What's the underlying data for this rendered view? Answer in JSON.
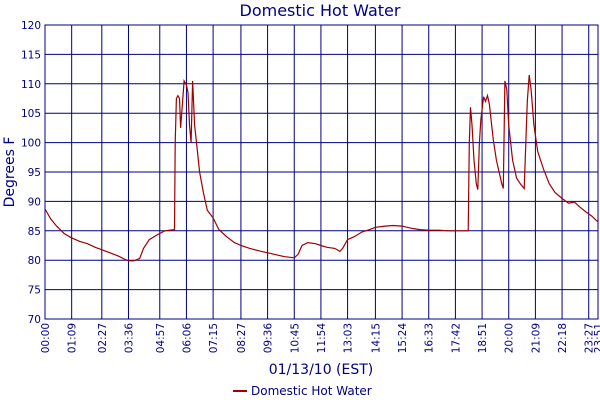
{
  "chart_data": {
    "type": "line",
    "title": "Domestic Hot Water",
    "xlabel": "01/13/10 (EST)",
    "ylabel": "Degrees F",
    "ylim": [
      70,
      120
    ],
    "yticks": [
      70,
      75,
      80,
      85,
      90,
      95,
      100,
      105,
      110,
      115,
      120
    ],
    "xlim_minutes": [
      0,
      1431
    ],
    "xticks": [
      {
        "label": "00:00",
        "minute": 0
      },
      {
        "label": "01:09",
        "minute": 69
      },
      {
        "label": "02:27",
        "minute": 147
      },
      {
        "label": "03:36",
        "minute": 216
      },
      {
        "label": "04:57",
        "minute": 297
      },
      {
        "label": "06:06",
        "minute": 366
      },
      {
        "label": "07:15",
        "minute": 435
      },
      {
        "label": "08:27",
        "minute": 507
      },
      {
        "label": "09:36",
        "minute": 576
      },
      {
        "label": "10:45",
        "minute": 645
      },
      {
        "label": "11:54",
        "minute": 714
      },
      {
        "label": "13:03",
        "minute": 783
      },
      {
        "label": "14:15",
        "minute": 855
      },
      {
        "label": "15:24",
        "minute": 924
      },
      {
        "label": "16:33",
        "minute": 993
      },
      {
        "label": "17:42",
        "minute": 1062
      },
      {
        "label": "18:51",
        "minute": 1131
      },
      {
        "label": "20:00",
        "minute": 1200
      },
      {
        "label": "21:09",
        "minute": 1269
      },
      {
        "label": "22:18",
        "minute": 1338
      },
      {
        "label": "23:27",
        "minute": 1407
      },
      {
        "label": "23:51",
        "minute": 1431
      }
    ],
    "grid": true,
    "legend_position": "bottom",
    "series": [
      {
        "name": "Domestic Hot Water",
        "color": "#a00000",
        "points": [
          [
            0,
            88.7
          ],
          [
            15,
            87
          ],
          [
            30,
            85.8
          ],
          [
            50,
            84.5
          ],
          [
            69,
            83.8
          ],
          [
            90,
            83.2
          ],
          [
            110,
            82.8
          ],
          [
            130,
            82.2
          ],
          [
            150,
            81.7
          ],
          [
            170,
            81.2
          ],
          [
            190,
            80.7
          ],
          [
            205,
            80.2
          ],
          [
            216,
            79.9
          ],
          [
            230,
            79.9
          ],
          [
            245,
            80.3
          ],
          [
            255,
            82
          ],
          [
            270,
            83.5
          ],
          [
            290,
            84.3
          ],
          [
            310,
            85
          ],
          [
            335,
            85.2
          ],
          [
            337,
            100
          ],
          [
            340,
            107.5
          ],
          [
            344,
            108
          ],
          [
            348,
            107.5
          ],
          [
            351,
            102.5
          ],
          [
            356,
            107
          ],
          [
            360,
            110.5
          ],
          [
            366,
            109.8
          ],
          [
            370,
            108.5
          ],
          [
            374,
            103
          ],
          [
            378,
            100
          ],
          [
            382,
            110.5
          ],
          [
            387,
            103
          ],
          [
            392,
            100
          ],
          [
            400,
            95
          ],
          [
            410,
            91.5
          ],
          [
            420,
            88.5
          ],
          [
            435,
            87.2
          ],
          [
            450,
            85.2
          ],
          [
            470,
            84
          ],
          [
            490,
            83
          ],
          [
            507,
            82.5
          ],
          [
            530,
            82
          ],
          [
            560,
            81.5
          ],
          [
            580,
            81.2
          ],
          [
            600,
            80.9
          ],
          [
            620,
            80.6
          ],
          [
            645,
            80.4
          ],
          [
            655,
            81
          ],
          [
            665,
            82.5
          ],
          [
            680,
            83
          ],
          [
            700,
            82.8
          ],
          [
            714,
            82.5
          ],
          [
            730,
            82.2
          ],
          [
            750,
            82
          ],
          [
            763,
            81.5
          ],
          [
            770,
            82
          ],
          [
            783,
            83.5
          ],
          [
            800,
            84
          ],
          [
            820,
            84.8
          ],
          [
            840,
            85.2
          ],
          [
            855,
            85.6
          ],
          [
            880,
            85.8
          ],
          [
            900,
            85.9
          ],
          [
            924,
            85.8
          ],
          [
            950,
            85.4
          ],
          [
            970,
            85.2
          ],
          [
            993,
            85.1
          ],
          [
            1020,
            85.1
          ],
          [
            1045,
            85
          ],
          [
            1062,
            85
          ],
          [
            1085,
            85
          ],
          [
            1095,
            85
          ],
          [
            1098,
            100
          ],
          [
            1101,
            106
          ],
          [
            1105,
            103
          ],
          [
            1110,
            97
          ],
          [
            1116,
            93
          ],
          [
            1120,
            92
          ],
          [
            1124,
            100
          ],
          [
            1128,
            104
          ],
          [
            1135,
            107.8
          ],
          [
            1140,
            107
          ],
          [
            1145,
            108
          ],
          [
            1150,
            106.5
          ],
          [
            1155,
            103.5
          ],
          [
            1160,
            100.5
          ],
          [
            1168,
            97
          ],
          [
            1175,
            95
          ],
          [
            1182,
            93
          ],
          [
            1186,
            92.2
          ],
          [
            1190,
            110.5
          ],
          [
            1195,
            109
          ],
          [
            1200,
            103
          ],
          [
            1210,
            97
          ],
          [
            1220,
            94
          ],
          [
            1230,
            93
          ],
          [
            1240,
            92.2
          ],
          [
            1248,
            107
          ],
          [
            1253,
            111.5
          ],
          [
            1258,
            109
          ],
          [
            1265,
            103
          ],
          [
            1275,
            98.5
          ],
          [
            1290,
            95.5
          ],
          [
            1305,
            93
          ],
          [
            1320,
            91.5
          ],
          [
            1338,
            90.5
          ],
          [
            1355,
            89.7
          ],
          [
            1370,
            89.9
          ],
          [
            1385,
            89
          ],
          [
            1400,
            88.2
          ],
          [
            1415,
            87.5
          ],
          [
            1431,
            86.5
          ]
        ]
      }
    ]
  }
}
